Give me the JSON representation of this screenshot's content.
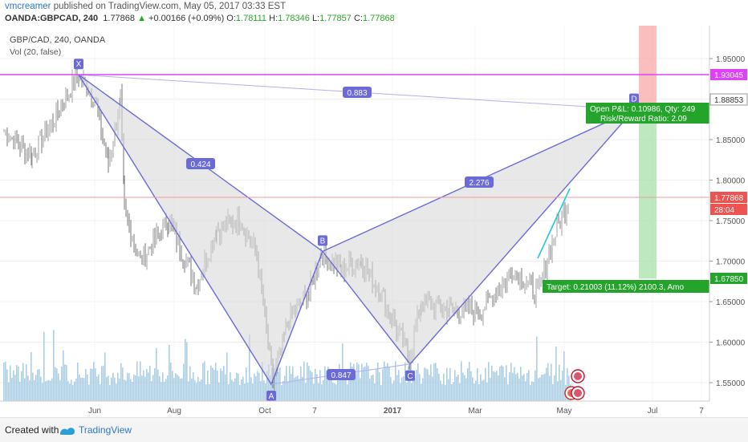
{
  "header": {
    "author": "vmcreamer",
    "published_text": " published on TradingView.com, May 05, 2017 03:33 EST",
    "symbol": "OANDA:GBPCAD, 240",
    "price": "1.77868",
    "change": "+0.00166 (+0.09%)",
    "o_label": "O:",
    "o_value": "1.78111",
    "h_label": "H:",
    "h_value": "1.78346",
    "l_label": "L:",
    "l_value": "1.77857",
    "c_label": "C:",
    "c_value": "1.77868"
  },
  "legend": {
    "title": "GBP/CAD, 240, OANDA",
    "volume": "Vol (20, false)"
  },
  "footer": {
    "created_with": "Created with",
    "brand": "TradingView"
  },
  "colors": {
    "pattern": "#6a6ad8",
    "fill": "#d9d9d9",
    "up": "#26a69a",
    "down": "#ef5350",
    "resistance": "#e040fb",
    "last_price": "#ef5350",
    "target": "#24a42a"
  },
  "chart_data": {
    "type": "line",
    "title": "GBP/CAD, 240, OANDA",
    "y_ticks": [
      "1.95000",
      "1.90000",
      "1.85000",
      "1.80000",
      "1.75000",
      "1.70000",
      "1.65000",
      "1.60000",
      "1.55000"
    ],
    "x_ticks": [
      "Jun",
      "Aug",
      "Oct",
      "7",
      "2017",
      "Mar",
      "May",
      "Jul",
      "7"
    ],
    "price_labels": {
      "resistance": "1.93045",
      "stop": "1.88853",
      "last": "1.77868",
      "countdown": "28:04",
      "target_level": "1.67850"
    },
    "xabcd_points": [
      {
        "label": "X",
        "x": "Jun",
        "y": 1.93
      },
      {
        "label": "A",
        "x": "Oct",
        "y": 1.548
      },
      {
        "label": "B",
        "x": "7",
        "y": 1.712
      },
      {
        "label": "C",
        "x": "2017",
        "y": 1.573
      },
      {
        "label": "D",
        "x": "Jun",
        "y": 1.887
      }
    ],
    "ratios": [
      "0.424",
      "0.883",
      "2.276",
      "0.847"
    ],
    "annotations": {
      "pnl_line1": "Open P&L: 0.10986, Qty: 249",
      "pnl_line2": "Risk/Reward Ratio: 2.09",
      "target": "Target: 0.21003 (11.12%) 2100.3, Amo"
    }
  }
}
